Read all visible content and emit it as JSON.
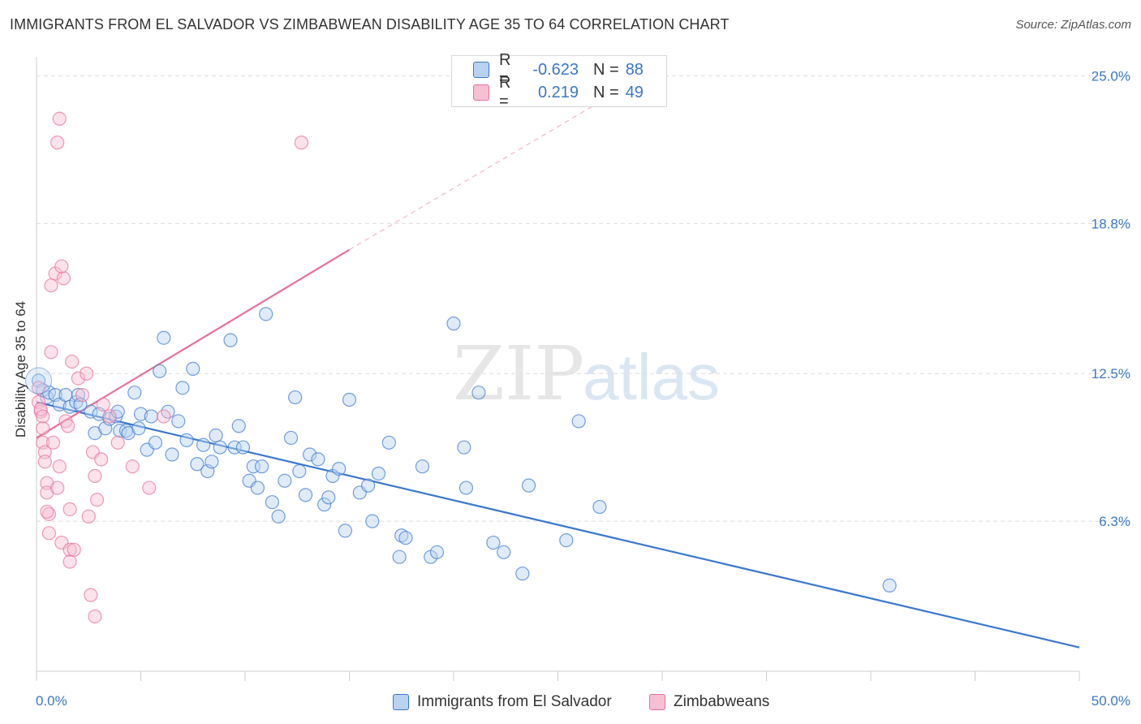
{
  "title": "IMMIGRANTS FROM EL SALVADOR VS ZIMBABWEAN DISABILITY AGE 35 TO 64 CORRELATION CHART",
  "source": "Source: ZipAtlas.com",
  "watermark": {
    "zip": "ZIP",
    "atlas": "atlas"
  },
  "legend_top": {
    "rows": [
      {
        "r_label": "R =",
        "r_value": "-0.623",
        "n_label": "N =",
        "n_value": "88"
      },
      {
        "r_label": "R =",
        "r_value": "0.219",
        "n_label": "N =",
        "n_value": "49"
      }
    ]
  },
  "legend_bottom": {
    "series1": "Immigrants from El Salvador",
    "series2": "Zimbabweans"
  },
  "colors": {
    "blue": "#3b78d0",
    "blue_fill": "#b8d2f2",
    "pink": "#e8709a",
    "pink_fill": "#f6bfd2",
    "grid": "#dddddd",
    "tick_text": "#3b78c3"
  },
  "chart_data": {
    "type": "scatter",
    "title": "IMMIGRANTS FROM EL SALVADOR VS ZIMBABWEAN DISABILITY AGE 35 TO 64 CORRELATION CHART",
    "xlabel": "",
    "ylabel": "Disability Age 35 to 64",
    "xlim": [
      0,
      50
    ],
    "ylim": [
      0,
      25.8
    ],
    "x_tick_labels": [
      "0.0%",
      "50.0%"
    ],
    "y_ticks": [
      6.3,
      12.5,
      18.8,
      25.0
    ],
    "y_tick_labels": [
      "6.3%",
      "12.5%",
      "18.8%",
      "25.0%"
    ],
    "grid": true,
    "legend_placement": "bottom",
    "series": [
      {
        "name": "Immigrants from El Salvador",
        "color": "#3b78d0",
        "r": -0.623,
        "n": 88,
        "trend": {
          "x": [
            0.0,
            50.0
          ],
          "y": [
            11.3,
            1.0
          ]
        },
        "points": [
          [
            0.1,
            12.2
          ],
          [
            0.3,
            11.8
          ],
          [
            0.5,
            11.5
          ],
          [
            0.6,
            11.7
          ],
          [
            0.9,
            11.6
          ],
          [
            1.1,
            11.2
          ],
          [
            1.4,
            11.6
          ],
          [
            1.6,
            11.1
          ],
          [
            1.9,
            11.3
          ],
          [
            2.0,
            11.6
          ],
          [
            2.6,
            10.9
          ],
          [
            2.8,
            10.0
          ],
          [
            3.0,
            10.8
          ],
          [
            3.3,
            10.2
          ],
          [
            3.5,
            10.6
          ],
          [
            3.8,
            10.7
          ],
          [
            3.9,
            10.9
          ],
          [
            4.0,
            10.1
          ],
          [
            4.3,
            10.1
          ],
          [
            4.4,
            10.0
          ],
          [
            4.7,
            11.7
          ],
          [
            4.9,
            10.2
          ],
          [
            5.0,
            10.8
          ],
          [
            5.3,
            9.3
          ],
          [
            5.5,
            10.7
          ],
          [
            5.7,
            9.6
          ],
          [
            5.9,
            12.6
          ],
          [
            6.1,
            14.0
          ],
          [
            6.3,
            10.9
          ],
          [
            6.5,
            9.1
          ],
          [
            6.8,
            10.5
          ],
          [
            7.0,
            11.9
          ],
          [
            7.2,
            9.7
          ],
          [
            7.5,
            12.7
          ],
          [
            7.7,
            8.7
          ],
          [
            8.0,
            9.5
          ],
          [
            8.2,
            8.4
          ],
          [
            8.4,
            8.8
          ],
          [
            8.6,
            9.9
          ],
          [
            8.8,
            9.4
          ],
          [
            9.3,
            13.9
          ],
          [
            9.5,
            9.4
          ],
          [
            9.7,
            10.3
          ],
          [
            9.9,
            9.4
          ],
          [
            10.2,
            8.0
          ],
          [
            10.4,
            8.6
          ],
          [
            10.6,
            7.7
          ],
          [
            10.8,
            8.6
          ],
          [
            11.0,
            15.0
          ],
          [
            11.3,
            7.1
          ],
          [
            11.6,
            6.5
          ],
          [
            11.9,
            8.0
          ],
          [
            12.2,
            9.8
          ],
          [
            12.4,
            11.5
          ],
          [
            12.6,
            8.4
          ],
          [
            12.9,
            7.4
          ],
          [
            13.1,
            9.1
          ],
          [
            13.5,
            8.9
          ],
          [
            13.8,
            7.0
          ],
          [
            14.0,
            7.3
          ],
          [
            14.2,
            8.2
          ],
          [
            14.5,
            8.5
          ],
          [
            14.8,
            5.9
          ],
          [
            15.0,
            11.4
          ],
          [
            15.5,
            7.5
          ],
          [
            15.9,
            7.8
          ],
          [
            16.1,
            6.3
          ],
          [
            16.4,
            8.3
          ],
          [
            16.9,
            9.6
          ],
          [
            17.4,
            4.8
          ],
          [
            17.5,
            5.7
          ],
          [
            17.7,
            5.6
          ],
          [
            18.5,
            8.6
          ],
          [
            18.9,
            4.8
          ],
          [
            19.2,
            5.0
          ],
          [
            20.0,
            14.6
          ],
          [
            20.5,
            9.4
          ],
          [
            20.6,
            7.7
          ],
          [
            21.2,
            11.7
          ],
          [
            21.9,
            5.4
          ],
          [
            22.4,
            5.0
          ],
          [
            23.3,
            4.1
          ],
          [
            23.6,
            7.8
          ],
          [
            25.4,
            5.5
          ],
          [
            26.0,
            10.5
          ],
          [
            27.0,
            6.9
          ],
          [
            40.9,
            3.6
          ],
          [
            2.1,
            11.2
          ]
        ]
      },
      {
        "name": "Zimbabweans",
        "color": "#e8709a",
        "r": 0.219,
        "n": 49,
        "trend": {
          "x": [
            0.0,
            15.0
          ],
          "y": [
            9.8,
            17.7
          ]
        },
        "trend_dashed": {
          "x": [
            15.0,
            27.0
          ],
          "y": [
            17.7,
            23.9
          ]
        },
        "points": [
          [
            0.1,
            11.9
          ],
          [
            0.1,
            11.3
          ],
          [
            0.2,
            10.9
          ],
          [
            0.2,
            11.0
          ],
          [
            0.3,
            10.7
          ],
          [
            0.3,
            10.2
          ],
          [
            0.3,
            9.6
          ],
          [
            0.4,
            9.2
          ],
          [
            0.4,
            8.8
          ],
          [
            0.5,
            7.9
          ],
          [
            0.5,
            7.5
          ],
          [
            0.6,
            6.6
          ],
          [
            0.6,
            5.8
          ],
          [
            0.7,
            13.4
          ],
          [
            0.7,
            16.2
          ],
          [
            0.8,
            9.6
          ],
          [
            0.9,
            16.7
          ],
          [
            1.0,
            7.7
          ],
          [
            1.0,
            22.2
          ],
          [
            1.1,
            23.2
          ],
          [
            1.1,
            8.6
          ],
          [
            1.2,
            5.4
          ],
          [
            1.3,
            16.5
          ],
          [
            1.4,
            10.5
          ],
          [
            1.5,
            10.3
          ],
          [
            1.6,
            6.8
          ],
          [
            1.6,
            5.1
          ],
          [
            1.6,
            4.6
          ],
          [
            1.7,
            13.0
          ],
          [
            1.8,
            5.1
          ],
          [
            2.0,
            12.3
          ],
          [
            2.2,
            11.6
          ],
          [
            2.4,
            12.5
          ],
          [
            2.5,
            6.5
          ],
          [
            2.6,
            3.2
          ],
          [
            2.7,
            9.2
          ],
          [
            2.8,
            2.3
          ],
          [
            2.8,
            8.2
          ],
          [
            2.9,
            7.2
          ],
          [
            3.1,
            8.9
          ],
          [
            3.2,
            11.2
          ],
          [
            3.5,
            10.7
          ],
          [
            3.9,
            9.6
          ],
          [
            4.6,
            8.6
          ],
          [
            5.4,
            7.7
          ],
          [
            6.1,
            10.7
          ],
          [
            12.7,
            22.2
          ],
          [
            1.2,
            17.0
          ],
          [
            0.5,
            6.7
          ]
        ]
      }
    ]
  }
}
